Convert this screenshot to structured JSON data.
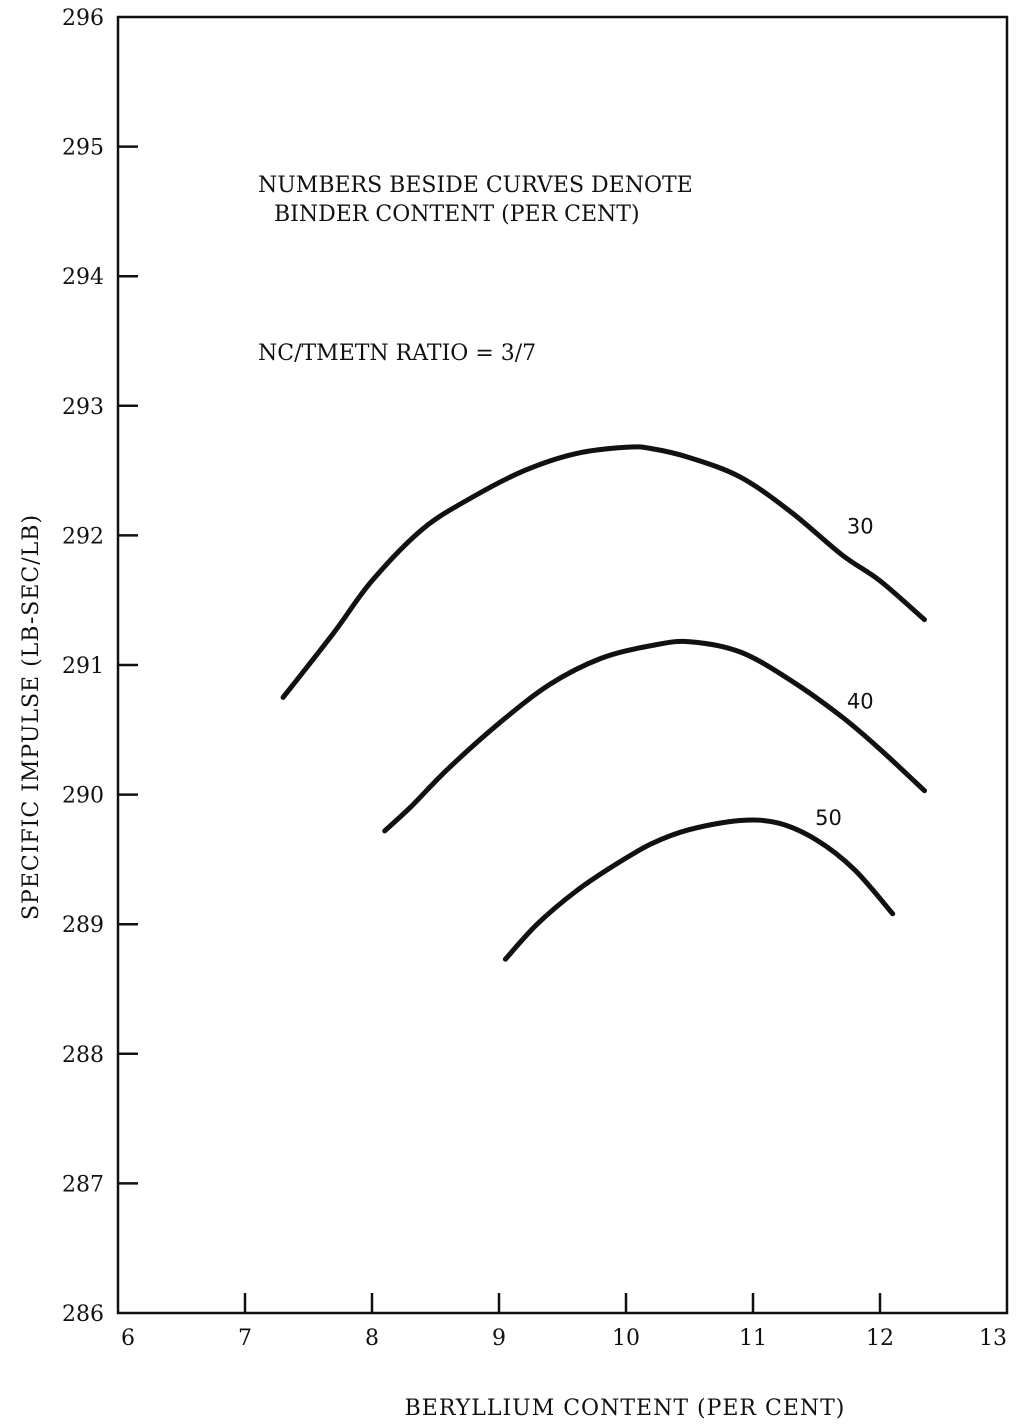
{
  "chart_data": {
    "type": "line",
    "xlabel": "BERYLLIUM CONTENT (PER CENT)",
    "ylabel": "SPECIFIC IMPULSE (LB-SEC/LB)",
    "xlim": [
      6,
      13
    ],
    "ylim": [
      286,
      296
    ],
    "xticks": [
      "6",
      "7",
      "8",
      "9",
      "10",
      "11",
      "12",
      "13"
    ],
    "yticks": [
      "286",
      "287",
      "288",
      "289",
      "290",
      "291",
      "292",
      "293",
      "294",
      "295",
      "296"
    ],
    "grid": false,
    "annotations": [
      "NUMBERS BESIDE CURVES DENOTE",
      "BINDER CONTENT (PER CENT)",
      "NC/TMETN RATIO = 3/7"
    ],
    "series": [
      {
        "name": "30",
        "x": [
          7.3,
          7.7,
          8.0,
          8.4,
          8.8,
          9.2,
          9.6,
          10.0,
          10.2,
          10.5,
          10.9,
          11.3,
          11.7,
          12.0,
          12.35
        ],
        "y": [
          290.75,
          291.25,
          291.65,
          292.05,
          292.3,
          292.5,
          292.63,
          292.68,
          292.67,
          292.6,
          292.45,
          292.18,
          291.85,
          291.65,
          291.35
        ]
      },
      {
        "name": "40",
        "x": [
          8.1,
          8.3,
          8.6,
          9.0,
          9.4,
          9.8,
          10.2,
          10.5,
          10.9,
          11.3,
          11.7,
          12.0,
          12.35
        ],
        "y": [
          289.72,
          289.9,
          290.2,
          290.55,
          290.85,
          291.05,
          291.15,
          291.18,
          291.1,
          290.88,
          290.6,
          290.35,
          290.03
        ]
      },
      {
        "name": "50",
        "x": [
          9.05,
          9.3,
          9.6,
          9.9,
          10.2,
          10.5,
          10.9,
          11.2,
          11.5,
          11.8,
          12.1
        ],
        "y": [
          288.73,
          289.0,
          289.25,
          289.45,
          289.62,
          289.73,
          289.8,
          289.78,
          289.65,
          289.42,
          289.08
        ]
      }
    ]
  }
}
